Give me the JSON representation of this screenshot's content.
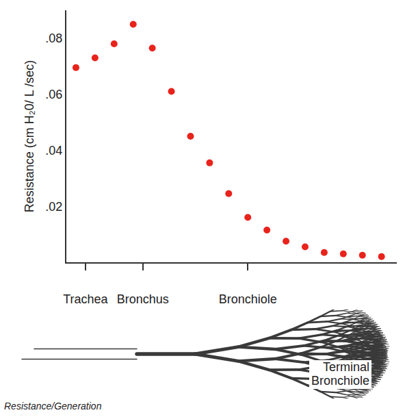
{
  "chart_data": {
    "type": "scatter",
    "title": "Resistance/Generation",
    "y_label": "Resistance (cm H₂0/ L /sec)",
    "x": [
      0,
      1,
      2,
      3,
      4,
      5,
      6,
      7,
      8,
      9,
      10,
      11,
      12,
      13,
      14,
      15,
      16
    ],
    "values": [
      0.0695,
      0.073,
      0.078,
      0.085,
      0.0765,
      0.061,
      0.045,
      0.0355,
      0.0245,
      0.016,
      0.0115,
      0.0075,
      0.0055,
      0.0035,
      0.003,
      0.0025,
      0.002
    ],
    "color": "#e8231c",
    "marker": "circle",
    "xlim": [
      -0.5,
      16.8
    ],
    "xticks": [
      {
        "value": 0.5,
        "label": "Trachea"
      },
      {
        "value": 3.5,
        "label": "Bronchus"
      },
      {
        "value": 9,
        "label": "Bronchiole"
      }
    ],
    "ylim": [
      0,
      0.09
    ],
    "yticks": [
      {
        "value": 0.02,
        "label": ".02"
      },
      {
        "value": 0.04,
        "label": ".04"
      },
      {
        "value": 0.06,
        "label": ".06"
      },
      {
        "value": 0.08,
        "label": ".08"
      }
    ],
    "grid": false,
    "annotations": [
      "Terminal Bronchiole"
    ]
  }
}
